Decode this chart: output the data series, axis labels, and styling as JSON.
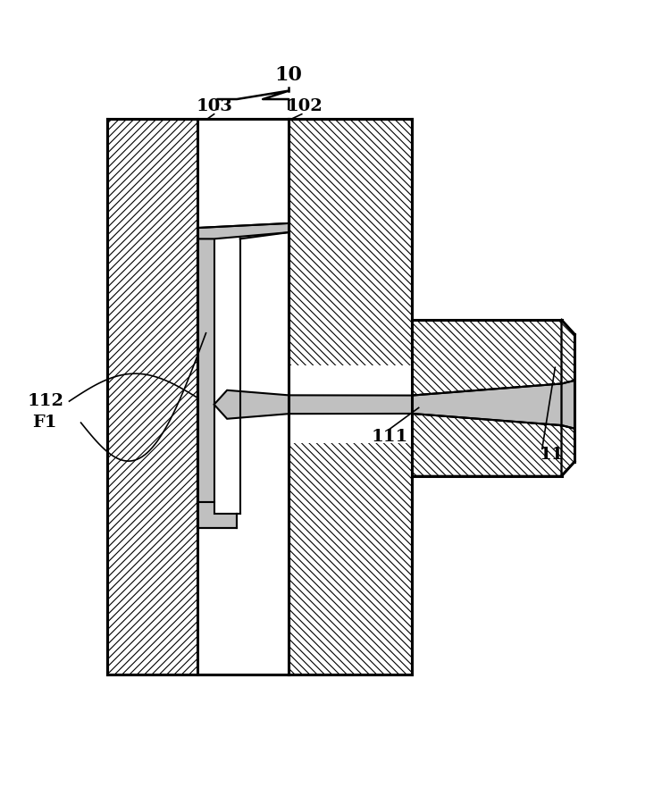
{
  "bg_color": "#ffffff",
  "figsize": [
    7.41,
    8.91
  ],
  "dpi": 100,
  "stipple_color": "#c0c0c0",
  "outer_lw": 2.2,
  "inner_lw": 1.5,
  "hatch_lw": 0.8
}
